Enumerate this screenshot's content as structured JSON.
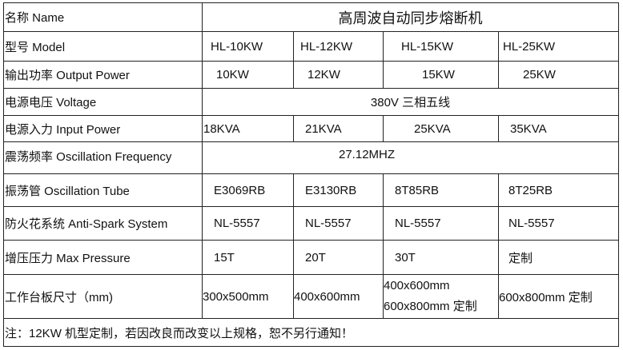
{
  "name_label": "名称 Name",
  "product_name": "高周波自动同步熔断机",
  "rows": {
    "model": {
      "label": "型号 Model",
      "values": [
        "HL-10KW",
        "HL-12KW",
        "HL-15KW",
        "HL-25KW"
      ]
    },
    "output": {
      "label": "输出功率 Output Power",
      "values": [
        "10KW",
        "12KW",
        "15KW",
        "25KW"
      ]
    },
    "voltage": {
      "label": "电源电压 Voltage",
      "value": "380V 三相五线"
    },
    "input": {
      "label": "电源入力 Input Power",
      "values": [
        "18KVA",
        "21KVA",
        "25KVA",
        "35KVA"
      ]
    },
    "frequency": {
      "label": "震荡频率 Oscillation Frequency",
      "value": "27.12MHZ"
    },
    "tube": {
      "label": "振荡管  Oscillation Tube",
      "values": [
        "E3069RB",
        "E3130RB",
        "8T85RB",
        "8T25RB"
      ]
    },
    "antispark": {
      "label": "防火花系统  Anti-Spark System",
      "values": [
        "NL-5557",
        "NL-5557",
        "NL-5557",
        "NL-5557"
      ]
    },
    "pressure": {
      "label": "增压压力   Max Pressure",
      "values": [
        "15T",
        "20T",
        "30T",
        "定制"
      ]
    },
    "table_size": {
      "label": "工作台板尺寸（mm)",
      "values": [
        "300x500mm",
        "400x600mm",
        "400x600mm",
        "600x800mm 定制"
      ],
      "extra": "600x800mm 定制"
    }
  },
  "note": "注：12KW 机型定制，若因改良而改变以上规格，恕不另行通知！"
}
